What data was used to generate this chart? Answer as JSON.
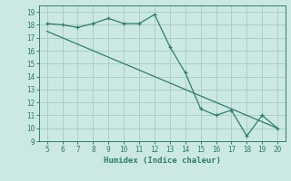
{
  "xlabel": "Humidex (Indice chaleur)",
  "x": [
    5,
    6,
    7,
    8,
    9,
    10,
    11,
    12,
    13,
    14,
    15,
    16,
    17,
    18,
    19,
    20
  ],
  "y_line1": [
    17.5,
    17.0,
    16.5,
    16.0,
    15.5,
    15.0,
    14.5,
    14.0,
    13.5,
    13.0,
    12.5,
    12.0,
    11.5,
    11.0,
    10.5,
    10.0
  ],
  "y_line2": [
    18.1,
    18.0,
    17.8,
    18.1,
    18.5,
    18.1,
    18.1,
    18.8,
    16.3,
    14.3,
    11.5,
    11.0,
    11.4,
    9.4,
    11.0,
    10.0
  ],
  "line_color": "#2d7d6e",
  "bg_color": "#cce8e3",
  "grid_color": "#aacfc9",
  "xlim": [
    4.5,
    20.5
  ],
  "ylim": [
    9,
    19.5
  ],
  "xticks": [
    5,
    6,
    7,
    8,
    9,
    10,
    11,
    12,
    13,
    14,
    15,
    16,
    17,
    18,
    19,
    20
  ],
  "yticks": [
    9,
    10,
    11,
    12,
    13,
    14,
    15,
    16,
    17,
    18,
    19
  ]
}
